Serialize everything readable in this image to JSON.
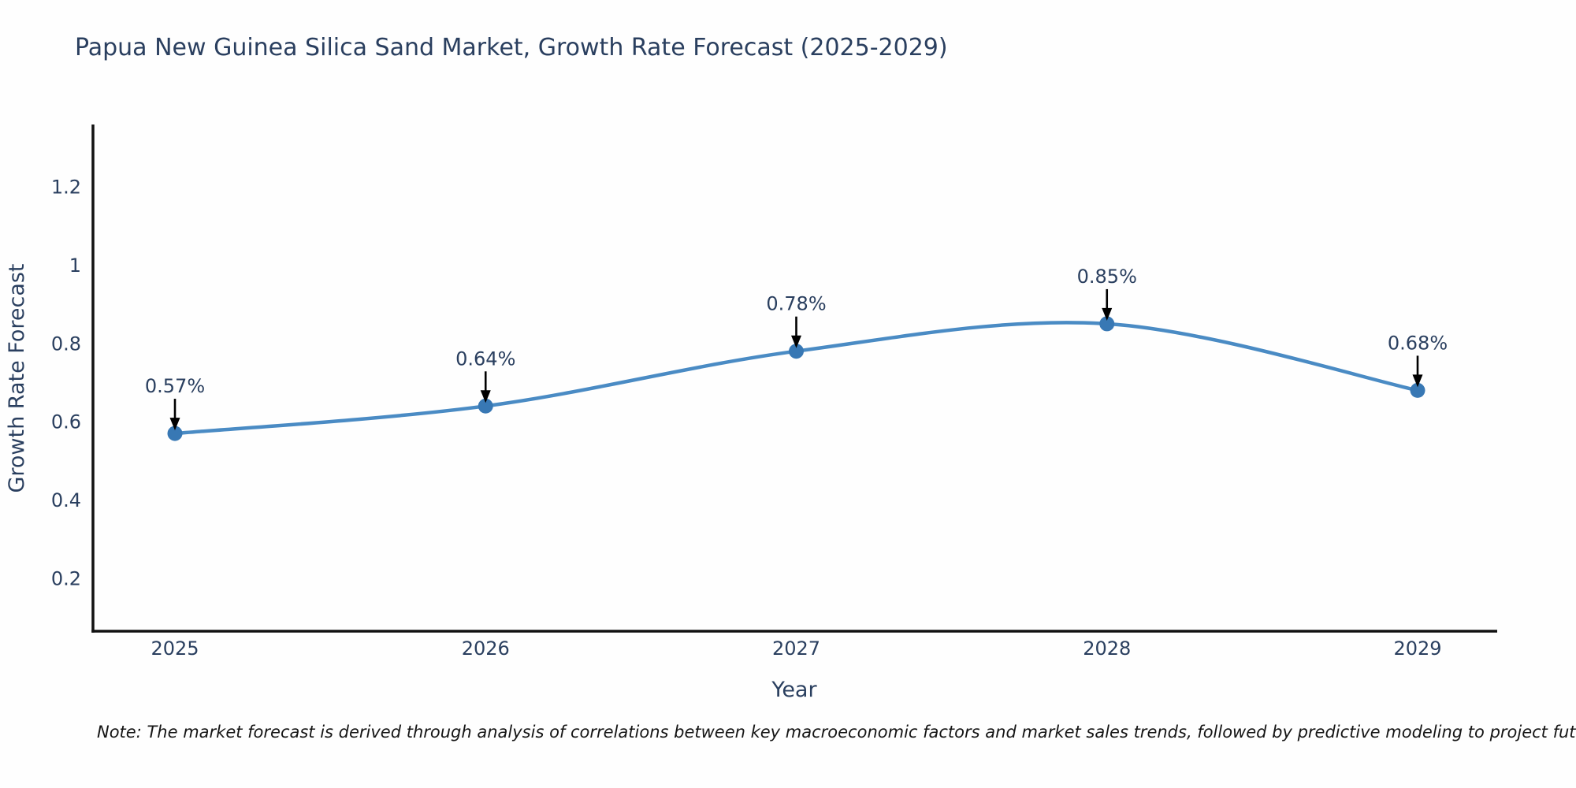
{
  "title": "Papua New Guinea Silica Sand Market, Growth Rate Forecast (2025-2029)",
  "note": "Note: The market forecast is derived through analysis of correlations between key macroeconomic factors and market sales trends, followed by predictive modeling to project future sales",
  "colors": {
    "line": "#4a8bc4",
    "marker": "#3878b4",
    "axis": "#111111",
    "text": "#2a3f5f",
    "arrow": "#000000",
    "background": "#fefefe"
  },
  "chart_data": {
    "type": "line",
    "title": "Papua New Guinea Silica Sand Market, Growth Rate Forecast (2025-2029)",
    "categories": [
      "2025",
      "2026",
      "2027",
      "2028",
      "2029"
    ],
    "series": [
      {
        "name": "Growth Rate Forecast",
        "values": [
          0.57,
          0.64,
          0.78,
          0.85,
          0.68
        ]
      }
    ],
    "point_labels": [
      "0.57%",
      "0.64%",
      "0.78%",
      "0.85%",
      "0.68%"
    ],
    "xlabel": "Year",
    "ylabel": "Growth Rate Forecast",
    "yticks": [
      0.2,
      0.4,
      0.6,
      0.8,
      1,
      1.2
    ],
    "ytick_labels": [
      "0.2",
      "0.4",
      "0.6",
      "0.8",
      "1",
      "1.2"
    ],
    "ylim": [
      0.065,
      1.355
    ],
    "line_shape": "spline",
    "grid": false,
    "legend_position": "none",
    "annotations_have_arrows": true
  }
}
